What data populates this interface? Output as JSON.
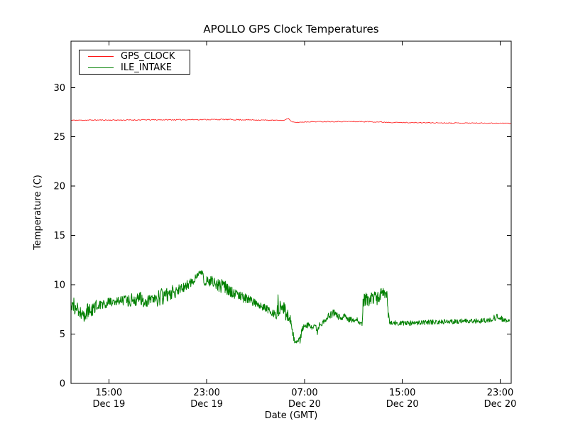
{
  "page": {
    "background": "#ffffff",
    "axis_color": "#000000"
  },
  "chart_data": {
    "type": "line",
    "title": "APOLLO GPS Clock Temperatures",
    "xlabel": "Date (GMT)",
    "ylabel": "Temperature (C)",
    "x_unit": "hours since Dec 19 00:00 GMT",
    "xlim": [
      11.9,
      47.9
    ],
    "ylim": [
      0,
      34.7
    ],
    "yticks": [
      0,
      5,
      10,
      15,
      20,
      25,
      30
    ],
    "xticks": [
      {
        "t": 15,
        "time": "15:00",
        "date": "Dec 19"
      },
      {
        "t": 23,
        "time": "23:00",
        "date": "Dec 19"
      },
      {
        "t": 31,
        "time": "07:00",
        "date": "Dec 20"
      },
      {
        "t": 39,
        "time": "15:00",
        "date": "Dec 20"
      },
      {
        "t": 47,
        "time": "23:00",
        "date": "Dec 20"
      }
    ],
    "grid": false,
    "legend_position": "upper-left",
    "series": [
      {
        "name": "GPS_CLOCK",
        "color": "#ff1414",
        "width": 0.8,
        "sample_step_hours": 0.06,
        "points": [
          [
            11.9,
            26.68,
            0.05
          ],
          [
            14.0,
            26.7,
            0.05
          ],
          [
            16.0,
            26.7,
            0.05
          ],
          [
            18.0,
            26.72,
            0.05
          ],
          [
            20.0,
            26.73,
            0.05
          ],
          [
            22.0,
            26.74,
            0.05
          ],
          [
            24.0,
            26.76,
            0.06
          ],
          [
            25.5,
            26.74,
            0.06
          ],
          [
            27.0,
            26.71,
            0.05
          ],
          [
            28.5,
            26.68,
            0.04
          ],
          [
            29.3,
            26.67,
            0.03
          ],
          [
            29.45,
            26.72,
            0.03
          ],
          [
            29.55,
            26.88,
            0.04
          ],
          [
            29.7,
            26.84,
            0.03
          ],
          [
            29.85,
            26.65,
            0.03
          ],
          [
            30.0,
            26.5,
            0.03
          ],
          [
            30.3,
            26.46,
            0.03
          ],
          [
            30.8,
            26.5,
            0.04
          ],
          [
            31.5,
            26.53,
            0.04
          ],
          [
            33.0,
            26.55,
            0.05
          ],
          [
            35.0,
            26.55,
            0.05
          ],
          [
            36.5,
            26.53,
            0.05
          ],
          [
            38.0,
            26.47,
            0.05
          ],
          [
            39.0,
            26.45,
            0.04
          ],
          [
            41.0,
            26.43,
            0.04
          ],
          [
            43.0,
            26.41,
            0.04
          ],
          [
            45.0,
            26.4,
            0.04
          ],
          [
            47.9,
            26.38,
            0.04
          ]
        ]
      },
      {
        "name": "ILE_INTAKE",
        "color": "#008000",
        "width": 1.0,
        "sample_step_hours": 0.033,
        "points": [
          [
            11.9,
            7.8,
            0.6
          ],
          [
            12.2,
            8.0,
            1.0
          ],
          [
            12.5,
            7.2,
            0.8
          ],
          [
            12.9,
            6.7,
            0.6
          ],
          [
            13.2,
            7.2,
            0.9
          ],
          [
            13.6,
            7.4,
            0.6
          ],
          [
            14.0,
            7.9,
            0.6
          ],
          [
            14.5,
            8.1,
            0.5
          ],
          [
            15.0,
            8.2,
            0.5
          ],
          [
            15.5,
            8.3,
            0.5
          ],
          [
            16.0,
            8.4,
            0.5
          ],
          [
            16.6,
            8.3,
            0.6
          ],
          [
            17.1,
            8.6,
            0.7
          ],
          [
            17.6,
            8.6,
            0.8
          ],
          [
            18.1,
            8.3,
            0.6
          ],
          [
            18.6,
            8.5,
            0.5
          ],
          [
            19.0,
            8.6,
            0.8
          ],
          [
            19.4,
            8.8,
            0.9
          ],
          [
            19.8,
            9.0,
            0.7
          ],
          [
            20.2,
            9.2,
            0.8
          ],
          [
            20.7,
            9.5,
            0.5
          ],
          [
            21.3,
            9.9,
            0.5
          ],
          [
            21.9,
            10.4,
            0.4
          ],
          [
            22.2,
            10.9,
            0.3
          ],
          [
            22.45,
            11.3,
            0.2
          ],
          [
            22.7,
            11.15,
            0.25
          ],
          [
            22.82,
            9.8,
            0.3
          ],
          [
            22.95,
            10.5,
            0.5
          ],
          [
            23.2,
            10.4,
            0.6
          ],
          [
            23.5,
            10.2,
            0.7
          ],
          [
            24.0,
            10.0,
            0.7
          ],
          [
            24.5,
            9.7,
            0.7
          ],
          [
            25.0,
            9.3,
            0.6
          ],
          [
            25.5,
            9.0,
            0.5
          ],
          [
            26.0,
            8.7,
            0.5
          ],
          [
            26.5,
            8.4,
            0.45
          ],
          [
            27.0,
            8.1,
            0.45
          ],
          [
            27.5,
            7.8,
            0.45
          ],
          [
            28.0,
            7.5,
            0.4
          ],
          [
            28.4,
            7.2,
            0.4
          ],
          [
            28.7,
            6.7,
            0.4
          ],
          [
            28.85,
            8.0,
            1.3
          ],
          [
            29.0,
            7.6,
            1.0
          ],
          [
            29.3,
            7.4,
            0.9
          ],
          [
            29.6,
            6.9,
            0.7
          ],
          [
            29.9,
            6.4,
            0.5
          ],
          [
            30.05,
            5.0,
            0.4
          ],
          [
            30.2,
            4.2,
            0.3
          ],
          [
            30.35,
            4.0,
            0.25
          ],
          [
            30.5,
            4.5,
            0.5
          ],
          [
            30.65,
            4.4,
            0.4
          ],
          [
            30.8,
            5.5,
            0.3
          ],
          [
            31.0,
            5.8,
            0.25
          ],
          [
            31.3,
            5.9,
            0.3
          ],
          [
            31.6,
            5.7,
            0.3
          ],
          [
            31.9,
            6.0,
            0.25
          ],
          [
            32.05,
            5.1,
            0.3
          ],
          [
            32.2,
            5.9,
            0.3
          ],
          [
            32.5,
            6.2,
            0.3
          ],
          [
            32.8,
            6.6,
            0.35
          ],
          [
            33.1,
            6.9,
            0.4
          ],
          [
            33.4,
            7.1,
            0.4
          ],
          [
            33.7,
            6.8,
            0.35
          ],
          [
            34.0,
            6.6,
            0.3
          ],
          [
            34.3,
            6.9,
            0.35
          ],
          [
            34.6,
            6.5,
            0.3
          ],
          [
            35.0,
            6.4,
            0.3
          ],
          [
            35.3,
            6.4,
            0.3
          ],
          [
            35.55,
            6.0,
            0.2
          ],
          [
            35.7,
            6.0,
            0.2
          ],
          [
            35.78,
            8.3,
            0.8
          ],
          [
            36.0,
            8.7,
            0.8
          ],
          [
            36.3,
            8.5,
            0.8
          ],
          [
            36.6,
            8.8,
            0.7
          ],
          [
            36.9,
            8.6,
            0.7
          ],
          [
            37.2,
            9.0,
            0.6
          ],
          [
            37.5,
            9.2,
            0.5
          ],
          [
            37.75,
            8.9,
            0.5
          ],
          [
            37.85,
            7.0,
            0.4
          ],
          [
            37.95,
            6.2,
            0.25
          ],
          [
            38.5,
            6.1,
            0.25
          ],
          [
            39.5,
            6.1,
            0.25
          ],
          [
            40.5,
            6.15,
            0.25
          ],
          [
            41.5,
            6.2,
            0.25
          ],
          [
            42.5,
            6.25,
            0.25
          ],
          [
            43.5,
            6.3,
            0.25
          ],
          [
            44.5,
            6.3,
            0.25
          ],
          [
            45.5,
            6.35,
            0.25
          ],
          [
            46.2,
            6.4,
            0.25
          ],
          [
            46.75,
            6.8,
            0.35
          ],
          [
            47.05,
            6.6,
            0.3
          ],
          [
            47.35,
            6.35,
            0.25
          ],
          [
            47.75,
            6.3,
            0.2
          ]
        ]
      }
    ]
  }
}
